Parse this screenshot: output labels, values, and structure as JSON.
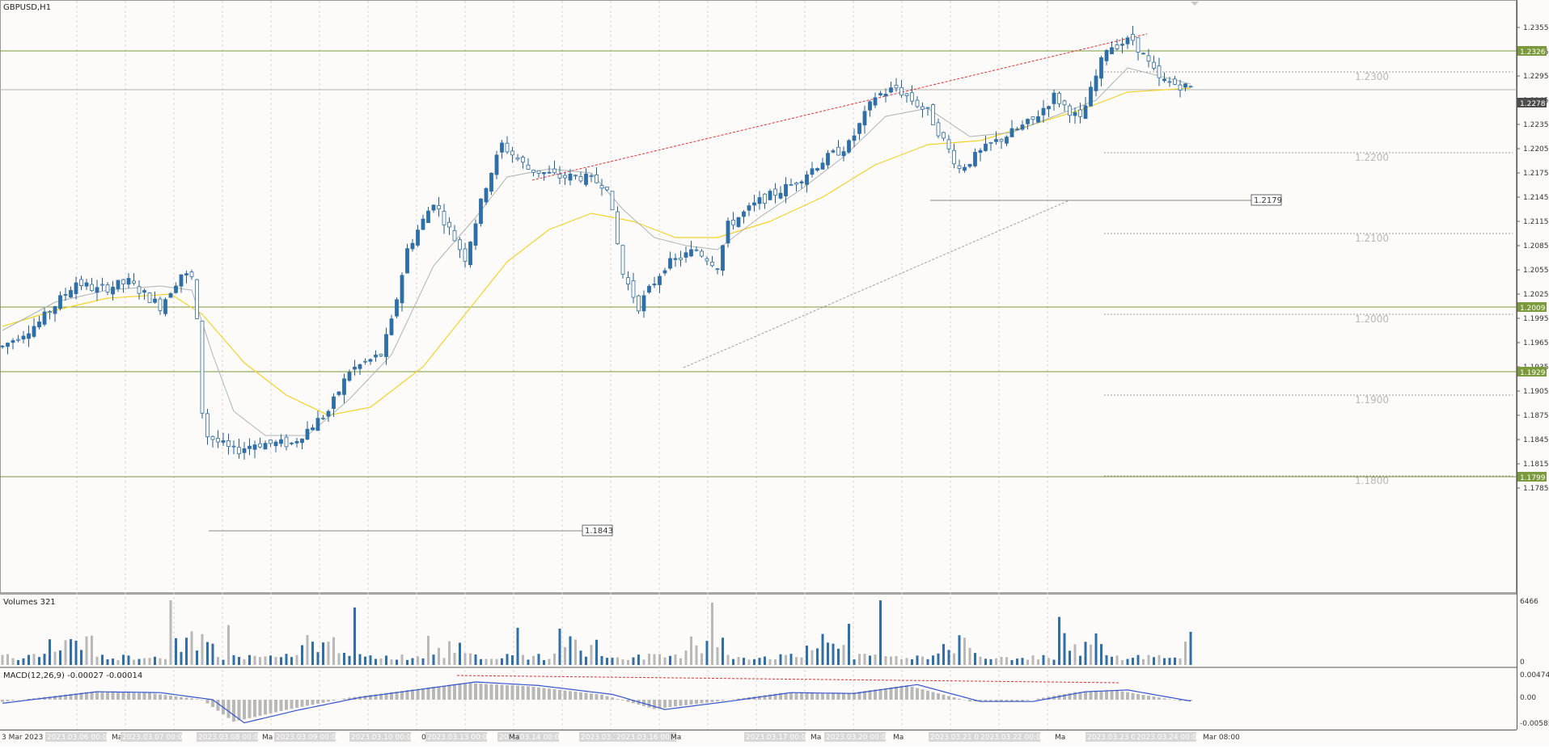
{
  "symbol_title": "GBPUSD,H1",
  "price_axis": {
    "ticks": [
      "1.2355",
      "1.2325",
      "1.2295",
      "1.2265",
      "1.2235",
      "1.2205",
      "1.2175",
      "1.2145",
      "1.2115",
      "1.2085",
      "1.2055",
      "1.2025",
      "1.1995",
      "1.1965",
      "1.1935",
      "1.1905",
      "1.1875",
      "1.1845",
      "1.1815",
      "1.1785"
    ],
    "current_price": "1.2278"
  },
  "levels": {
    "horizontal_lines": [
      {
        "price": 1.2326,
        "label": "1.2326"
      },
      {
        "price": 1.2009,
        "label": "1.2009"
      },
      {
        "price": 1.1929,
        "label": "1.1929"
      },
      {
        "price": 1.1799,
        "label": "1.1799"
      }
    ],
    "round_numbers": [
      {
        "price": 1.23,
        "label": "1.2300"
      },
      {
        "price": 1.22,
        "label": "1.2200"
      },
      {
        "price": 1.21,
        "label": "1.2100"
      },
      {
        "price": 1.2,
        "label": "1.2000"
      },
      {
        "price": 1.19,
        "label": "1.1900"
      },
      {
        "price": 1.18,
        "label": "1.1800"
      }
    ],
    "support_marks": [
      {
        "price": 1.1843,
        "label": "1.1843"
      },
      {
        "price": 1.2179,
        "label": "1.2179"
      }
    ]
  },
  "time_axis": {
    "labels": [
      "3 Mar 2023",
      "2023.03.06 00:00",
      "Ma",
      "2023.03.07 00:00",
      "2023.03.08 00:00",
      "Ma",
      "2023.03.09 00:00",
      "2023.03.10 00:00",
      "0 Ma",
      "2023.03.13 00:00",
      "2023.03.14 00:00",
      "Ma",
      "2023.03.15 00:00",
      "2023.03.16 00:00",
      "Ma",
      "2023.03.17 00:00",
      "Ma",
      "2023.03.20 00:00",
      "Ma",
      "2023.03.21 00:00",
      "2023.03.22 00:00",
      "Ma",
      "2023.03.23 00:00",
      "2023.03.24 00:00",
      "Mar 08:00"
    ]
  },
  "volumes": {
    "title": "Volumes 321",
    "max_label": "6466",
    "zero_label": "0"
  },
  "macd": {
    "title": "MACD(12,26,9) -0.00027 -0.00014",
    "ticks": [
      "0.00474",
      "0.00",
      "-0.00585"
    ]
  },
  "colors": {
    "bull_candle": "#2e6fa7",
    "bear_candle": "#2e6fa7",
    "ema_fast": "#aab4b4",
    "ema_slow": "#f3d22a",
    "level_line": "#7b9a3c",
    "trend_upper": "#e03030",
    "trend_lower": "#a0a0a0",
    "volume_up": "#2e6fa7",
    "volume_down": "#b8b8b8",
    "macd_hist": "#b8b8b8",
    "macd_signal": "#3355cc"
  },
  "chart_data": {
    "type": "candlestick",
    "symbol": "GBPUSD",
    "timeframe": "H1",
    "ylim": [
      1.1775,
      1.2375
    ],
    "path": [
      [
        0,
        1.196
      ],
      [
        7,
        1.199
      ],
      [
        14,
        1.204
      ],
      [
        18,
        1.203
      ],
      [
        24,
        1.204
      ],
      [
        30,
        1.201
      ],
      [
        34,
        1.205
      ],
      [
        36,
        1.2045
      ],
      [
        37,
        1.199
      ],
      [
        38,
        1.188
      ],
      [
        39,
        1.185
      ],
      [
        44,
        1.183
      ],
      [
        48,
        1.184
      ],
      [
        55,
        1.184
      ],
      [
        62,
        1.188
      ],
      [
        66,
        1.193
      ],
      [
        72,
        1.195
      ],
      [
        74,
        1.199
      ],
      [
        77,
        1.208
      ],
      [
        82,
        1.214
      ],
      [
        88,
        1.207
      ],
      [
        92,
        1.216
      ],
      [
        95,
        1.221
      ],
      [
        100,
        1.218
      ],
      [
        106,
        1.217
      ],
      [
        110,
        1.217
      ],
      [
        115,
        1.216
      ],
      [
        118,
        1.205
      ],
      [
        121,
        1.201
      ],
      [
        126,
        1.206
      ],
      [
        132,
        1.208
      ],
      [
        136,
        1.206
      ],
      [
        138,
        1.211
      ],
      [
        144,
        1.214
      ],
      [
        150,
        1.216
      ],
      [
        156,
        1.219
      ],
      [
        161,
        1.221
      ],
      [
        166,
        1.227
      ],
      [
        170,
        1.228
      ],
      [
        176,
        1.225
      ],
      [
        182,
        1.218
      ],
      [
        188,
        1.221
      ],
      [
        196,
        1.224
      ],
      [
        200,
        1.227
      ],
      [
        205,
        1.224
      ],
      [
        210,
        1.233
      ],
      [
        215,
        1.234
      ],
      [
        220,
        1.229
      ],
      [
        226,
        1.228
      ]
    ],
    "ema_fast": [
      [
        0,
        1.198
      ],
      [
        10,
        1.2015
      ],
      [
        20,
        1.203
      ],
      [
        30,
        1.2035
      ],
      [
        36,
        1.203
      ],
      [
        40,
        1.195
      ],
      [
        44,
        1.188
      ],
      [
        50,
        1.185
      ],
      [
        58,
        1.185
      ],
      [
        66,
        1.1895
      ],
      [
        74,
        1.195
      ],
      [
        82,
        1.206
      ],
      [
        90,
        1.212
      ],
      [
        96,
        1.217
      ],
      [
        104,
        1.218
      ],
      [
        112,
        1.2175
      ],
      [
        118,
        1.213
      ],
      [
        124,
        1.2095
      ],
      [
        130,
        1.2085
      ],
      [
        136,
        1.208
      ],
      [
        144,
        1.212
      ],
      [
        152,
        1.2155
      ],
      [
        160,
        1.2195
      ],
      [
        168,
        1.2245
      ],
      [
        176,
        1.2255
      ],
      [
        184,
        1.222
      ],
      [
        192,
        1.2225
      ],
      [
        200,
        1.2245
      ],
      [
        208,
        1.2265
      ],
      [
        214,
        1.2305
      ],
      [
        220,
        1.2295
      ],
      [
        226,
        1.2285
      ]
    ],
    "ema_slow": [
      [
        0,
        1.1985
      ],
      [
        10,
        1.2005
      ],
      [
        20,
        1.202
      ],
      [
        32,
        1.2025
      ],
      [
        38,
        1.2
      ],
      [
        46,
        1.194
      ],
      [
        54,
        1.19
      ],
      [
        62,
        1.1875
      ],
      [
        70,
        1.1885
      ],
      [
        80,
        1.1935
      ],
      [
        88,
        1.2
      ],
      [
        96,
        1.2065
      ],
      [
        104,
        1.2105
      ],
      [
        112,
        1.2125
      ],
      [
        120,
        1.2115
      ],
      [
        128,
        1.2095
      ],
      [
        136,
        1.2095
      ],
      [
        146,
        1.2115
      ],
      [
        156,
        1.2145
      ],
      [
        166,
        1.2185
      ],
      [
        176,
        1.221
      ],
      [
        186,
        1.2215
      ],
      [
        196,
        1.2235
      ],
      [
        206,
        1.2255
      ],
      [
        214,
        1.2275
      ],
      [
        226,
        1.228
      ]
    ],
    "macd_signal": [
      [
        0,
        -0.0008
      ],
      [
        18,
        0.0018
      ],
      [
        30,
        0.0016
      ],
      [
        40,
        0.0
      ],
      [
        46,
        -0.0052
      ],
      [
        56,
        -0.0024
      ],
      [
        68,
        0.0005
      ],
      [
        80,
        0.0024
      ],
      [
        90,
        0.004
      ],
      [
        102,
        0.0032
      ],
      [
        116,
        0.0012
      ],
      [
        126,
        -0.0022
      ],
      [
        138,
        -0.0004
      ],
      [
        150,
        0.0016
      ],
      [
        162,
        0.0014
      ],
      [
        174,
        0.0034
      ],
      [
        186,
        -0.0004
      ],
      [
        196,
        -0.0004
      ],
      [
        206,
        0.0018
      ],
      [
        214,
        0.0022
      ],
      [
        226,
        -0.0003
      ]
    ]
  }
}
